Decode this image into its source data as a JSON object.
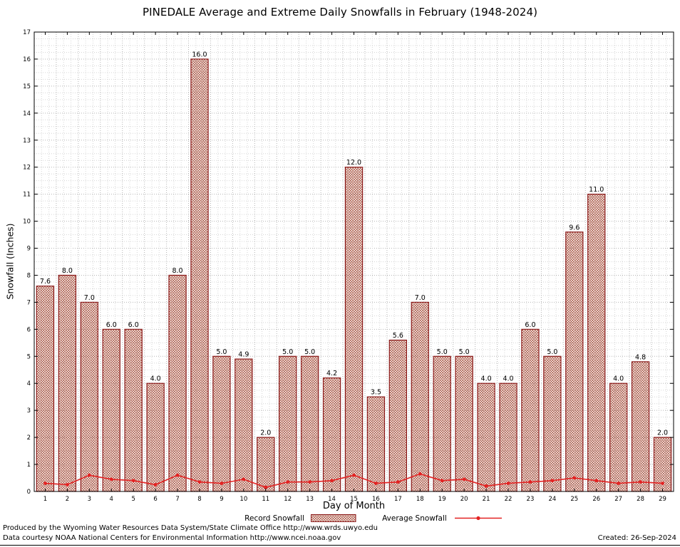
{
  "chart_data": {
    "type": "bar",
    "title": "PINEDALE Average and Extreme Daily Snowfalls in February (1948-2024)",
    "xlabel": "Day of Month",
    "ylabel": "Snowfall (Inches)",
    "ylim": [
      0,
      17
    ],
    "y_tick_step": 1,
    "grid": true,
    "legend_position": "bottom",
    "categories": [
      1,
      2,
      3,
      4,
      5,
      6,
      7,
      8,
      9,
      10,
      11,
      12,
      13,
      14,
      15,
      16,
      17,
      18,
      19,
      20,
      21,
      22,
      23,
      24,
      25,
      26,
      27,
      28,
      29
    ],
    "series": [
      {
        "name": "Record Snowfall",
        "type": "bar",
        "style": "crosshatch",
        "values": [
          7.6,
          8.0,
          7.0,
          6.0,
          6.0,
          4.0,
          8.0,
          16.0,
          5.0,
          4.9,
          2.0,
          5.0,
          5.0,
          4.2,
          12.0,
          3.5,
          5.6,
          7.0,
          5.0,
          5.0,
          4.0,
          4.0,
          6.0,
          5.0,
          9.6,
          11.0,
          4.0,
          4.8,
          2.0
        ]
      },
      {
        "name": "Average Snowfall",
        "type": "line",
        "marker": "dot",
        "values": [
          0.3,
          0.25,
          0.6,
          0.45,
          0.4,
          0.25,
          0.6,
          0.35,
          0.3,
          0.45,
          0.15,
          0.35,
          0.35,
          0.4,
          0.6,
          0.3,
          0.35,
          0.65,
          0.4,
          0.45,
          0.2,
          0.3,
          0.35,
          0.4,
          0.5,
          0.4,
          0.3,
          0.35,
          0.3
        ]
      }
    ]
  },
  "colors": {
    "bar_outline": "#8b1a1a",
    "bar_hatch": "#a24531",
    "avg_line": "#e32222",
    "grid_major": "#b5b5b5",
    "grid_minor": "#d6d6d6",
    "axis": "#000000"
  },
  "footer": {
    "line1": "Produced by the Wyoming Water Resources Data System/State Climate Office http://www.wrds.uwyo.edu",
    "line2": "Data courtesy NOAA National Centers for Environmental Information http://www.ncei.noaa.gov",
    "created": "Created: 26-Sep-2024"
  }
}
